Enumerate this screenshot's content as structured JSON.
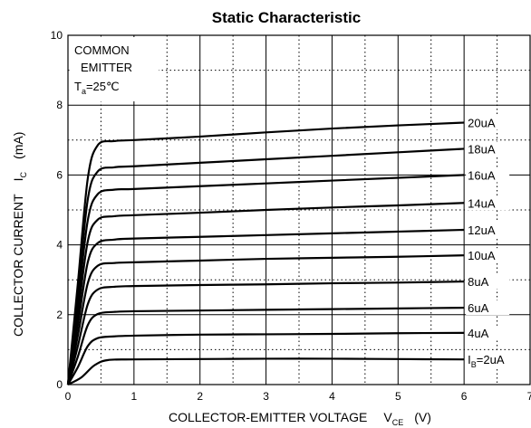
{
  "chart_data": {
    "type": "line",
    "title": "Static Characteristic",
    "xlabel_main": "COLLECTOR-EMITTER VOLTAGE",
    "xlabel_sym": "V",
    "xlabel_sub": "CE",
    "xlabel_unit": "(V)",
    "ylabel_main": "COLLECTOR CURRENT",
    "ylabel_sym": "I",
    "ylabel_sub": "C",
    "ylabel_unit": "(mA)",
    "xlim": [
      0,
      7
    ],
    "ylim": [
      0,
      10
    ],
    "x_ticks": [
      "0",
      "1",
      "2",
      "3",
      "4",
      "5",
      "6",
      "7"
    ],
    "y_ticks": [
      "0",
      "2",
      "4",
      "6",
      "8",
      "10"
    ],
    "grid": true,
    "annotation": {
      "line1": "COMMON",
      "line2": "EMITTER",
      "line3_sym": "T",
      "line3_sub": "a",
      "line3_val": "=25℃"
    },
    "series": [
      {
        "name": "2uA",
        "label_prefix": "I",
        "label_sub": "B",
        "label_text": "=2uA",
        "x": [
          0,
          0.2,
          0.4,
          0.6,
          1,
          2,
          3,
          4,
          5,
          6
        ],
        "y": [
          0,
          0.2,
          0.55,
          0.7,
          0.72,
          0.73,
          0.74,
          0.74,
          0.73,
          0.72
        ]
      },
      {
        "name": "4uA",
        "label_text": "4uA",
        "x": [
          0,
          0.15,
          0.3,
          0.45,
          0.7,
          1,
          2,
          3,
          4,
          5,
          6
        ],
        "y": [
          0,
          0.5,
          1.1,
          1.33,
          1.38,
          1.4,
          1.43,
          1.44,
          1.45,
          1.47,
          1.48
        ]
      },
      {
        "name": "6uA",
        "label_text": "6uA",
        "x": [
          0,
          0.15,
          0.3,
          0.45,
          0.7,
          1,
          2,
          3,
          4,
          5,
          6
        ],
        "y": [
          0,
          0.8,
          1.7,
          2.02,
          2.08,
          2.1,
          2.12,
          2.14,
          2.16,
          2.18,
          2.2
        ]
      },
      {
        "name": "8uA",
        "label_text": "8uA",
        "x": [
          0,
          0.15,
          0.3,
          0.45,
          0.7,
          1,
          2,
          3,
          4,
          5,
          6
        ],
        "y": [
          0,
          1.1,
          2.3,
          2.72,
          2.8,
          2.82,
          2.85,
          2.87,
          2.9,
          2.92,
          2.95
        ]
      },
      {
        "name": "10uA",
        "label_text": "10uA",
        "x": [
          0,
          0.15,
          0.3,
          0.45,
          0.7,
          1,
          2,
          3,
          4,
          5,
          6
        ],
        "y": [
          0,
          1.4,
          2.9,
          3.4,
          3.48,
          3.5,
          3.55,
          3.6,
          3.63,
          3.66,
          3.7
        ]
      },
      {
        "name": "12uA",
        "label_text": "12uA",
        "x": [
          0,
          0.15,
          0.3,
          0.45,
          0.7,
          1,
          2,
          3,
          4,
          5,
          6
        ],
        "y": [
          0,
          1.7,
          3.5,
          4.05,
          4.15,
          4.18,
          4.23,
          4.28,
          4.33,
          4.38,
          4.43
        ]
      },
      {
        "name": "14uA",
        "label_text": "14uA",
        "x": [
          0,
          0.15,
          0.3,
          0.45,
          0.7,
          1,
          2,
          3,
          4,
          5,
          6
        ],
        "y": [
          0,
          2.0,
          4.1,
          4.72,
          4.82,
          4.85,
          4.92,
          5.0,
          5.07,
          5.13,
          5.2
        ]
      },
      {
        "name": "16uA",
        "label_text": "16uA",
        "x": [
          0,
          0.15,
          0.3,
          0.45,
          0.7,
          1,
          2,
          3,
          4,
          5,
          6
        ],
        "y": [
          0,
          2.3,
          4.7,
          5.45,
          5.58,
          5.6,
          5.68,
          5.76,
          5.84,
          5.92,
          6.0
        ]
      },
      {
        "name": "18uA",
        "label_text": "18uA",
        "x": [
          0,
          0.15,
          0.3,
          0.45,
          0.7,
          1,
          2,
          3,
          4,
          5,
          6
        ],
        "y": [
          0,
          2.6,
          5.3,
          6.1,
          6.22,
          6.25,
          6.35,
          6.45,
          6.55,
          6.65,
          6.75
        ]
      },
      {
        "name": "20uA",
        "label_text": "20uA",
        "x": [
          0,
          0.15,
          0.3,
          0.45,
          0.7,
          1,
          2,
          3,
          4,
          5,
          6
        ],
        "y": [
          0,
          2.9,
          5.9,
          6.85,
          6.97,
          7.0,
          7.1,
          7.22,
          7.33,
          7.42,
          7.5
        ]
      }
    ]
  }
}
